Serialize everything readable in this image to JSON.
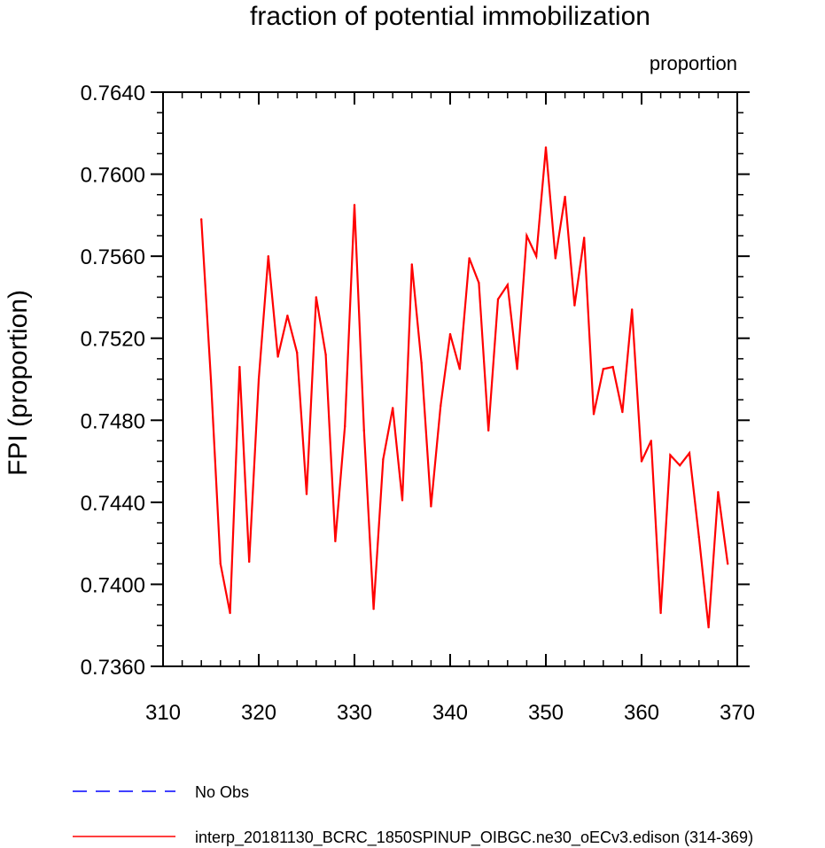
{
  "chart_data": {
    "type": "line",
    "title": "fraction of potential immobilization",
    "units_label": "proportion",
    "xlabel": "",
    "ylabel": "FPI  (proportion)",
    "xlim": [
      310,
      370
    ],
    "ylim": [
      0.736,
      0.764
    ],
    "x_ticks": [
      310,
      320,
      330,
      340,
      350,
      360,
      370
    ],
    "x_tick_labels": [
      "310",
      "320",
      "330",
      "340",
      "350",
      "360",
      "370"
    ],
    "y_ticks": [
      0.736,
      0.74,
      0.744,
      0.748,
      0.752,
      0.756,
      0.76,
      0.764
    ],
    "y_tick_labels": [
      "0.7360",
      "0.7400",
      "0.7440",
      "0.7480",
      "0.7520",
      "0.7560",
      "0.7600",
      "0.7640"
    ],
    "grid": false,
    "legend_position": "bottom",
    "series": [
      {
        "name": "No Obs",
        "color": "#0000ff",
        "dash": "dashed",
        "x": [],
        "values": []
      },
      {
        "name": "interp_20181130_BCRC_1850SPINUP_OIBGC.ne30_oECv3.edison (314-369)",
        "color": "#ff0000",
        "dash": "solid",
        "x": [
          314,
          315,
          316,
          317,
          318,
          319,
          320,
          321,
          322,
          323,
          324,
          325,
          326,
          327,
          328,
          329,
          330,
          331,
          332,
          333,
          334,
          335,
          336,
          337,
          338,
          339,
          340,
          341,
          342,
          343,
          344,
          345,
          346,
          347,
          348,
          349,
          350,
          351,
          352,
          353,
          354,
          355,
          356,
          357,
          358,
          359,
          360,
          361,
          362,
          363,
          364,
          365,
          366,
          367,
          368,
          369
        ],
        "values": [
          0.7578,
          0.75,
          0.741,
          0.7386,
          0.7506,
          0.7411,
          0.75,
          0.756,
          0.7511,
          0.7531,
          0.7513,
          0.7444,
          0.754,
          0.7512,
          0.7421,
          0.7477,
          0.7585,
          0.7475,
          0.7388,
          0.7461,
          0.7486,
          0.7441,
          0.7556,
          0.7508,
          0.7438,
          0.7487,
          0.7522,
          0.7505,
          0.7559,
          0.7547,
          0.7475,
          0.7539,
          0.7546,
          0.7505,
          0.757,
          0.756,
          0.7613,
          0.7559,
          0.7589,
          0.7536,
          0.7569,
          0.7483,
          0.7505,
          0.7506,
          0.7484,
          0.7534,
          0.746,
          0.747,
          0.7386,
          0.7463,
          0.7458,
          0.7464,
          0.7423,
          0.7379,
          0.7445,
          0.741
        ]
      }
    ]
  }
}
